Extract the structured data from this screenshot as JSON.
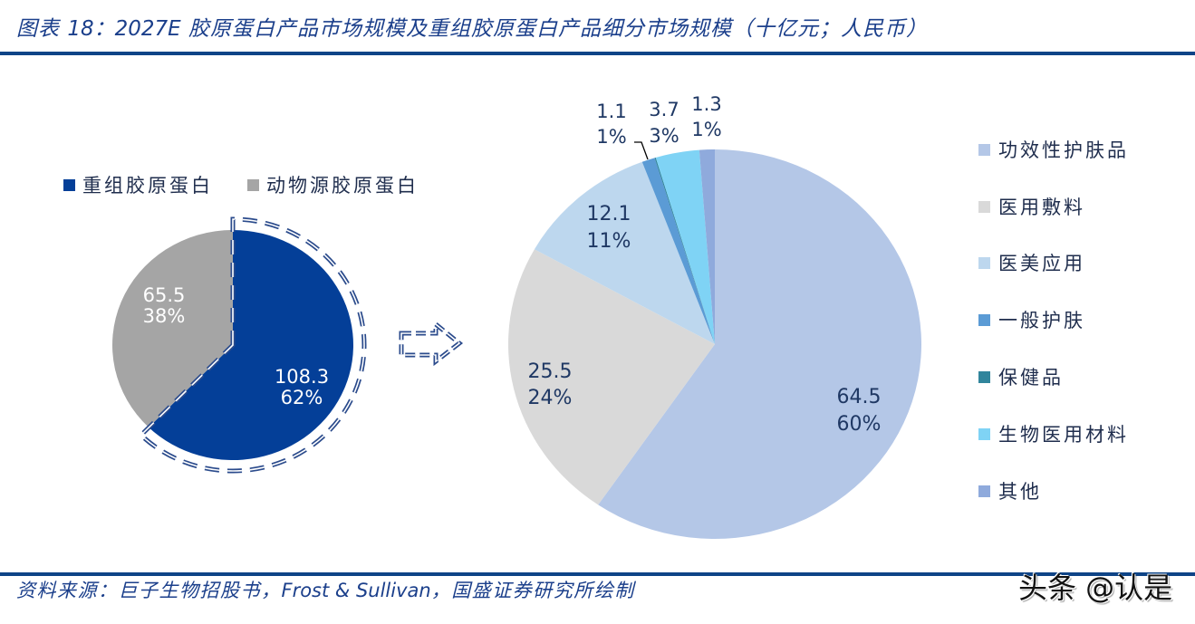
{
  "title": {
    "prefix": "图表 ",
    "number": "18：",
    "year": "2027E",
    "text": " 胶原蛋白产品市场规模及重组胶原蛋白产品细分市场规模（十亿元；人民币）"
  },
  "source": {
    "prefix": "资料来源：巨子生物招股书，",
    "latin": "Frost & Sullivan",
    "suffix": "，国盛证券研究所绘制"
  },
  "watermark": "头条 @认是",
  "chart_data": [
    {
      "type": "pie",
      "title": "2027E 胶原蛋白产品市场规模",
      "unit": "十亿元；人民币",
      "categories": [
        "重组胶原蛋白",
        "动物源胶原蛋白"
      ],
      "values": [
        108.3,
        65.5
      ],
      "value_labels": [
        "108.3",
        "65.5"
      ],
      "percent_labels": [
        "62%",
        "38%"
      ],
      "colors": [
        "#043f98",
        "#a5a5a5"
      ],
      "legend_position": "top",
      "highlighted_slice": "重组胶原蛋白"
    },
    {
      "type": "pie",
      "title": "2027E 重组胶原蛋白产品细分市场规模",
      "unit": "十亿元；人民币",
      "categories": [
        "功效性护肤品",
        "医用敷料",
        "医美应用",
        "一般护肤",
        "保健品",
        "生物医用材料",
        "其他"
      ],
      "values": [
        64.5,
        25.5,
        12.1,
        1.1,
        0.1,
        3.7,
        1.3
      ],
      "value_labels": [
        "64.5",
        "25.5",
        "12.1",
        "1.1",
        "",
        "3.7",
        "1.3"
      ],
      "percent_labels": [
        "60%",
        "24%",
        "11%",
        "1%",
        "",
        "3%",
        "1%"
      ],
      "colors": [
        "#b4c7e7",
        "#d9d9d9",
        "#bdd7ee",
        "#5b9bd5",
        "#31859c",
        "#7fd3f5",
        "#8faadc"
      ],
      "legend_position": "right"
    }
  ]
}
